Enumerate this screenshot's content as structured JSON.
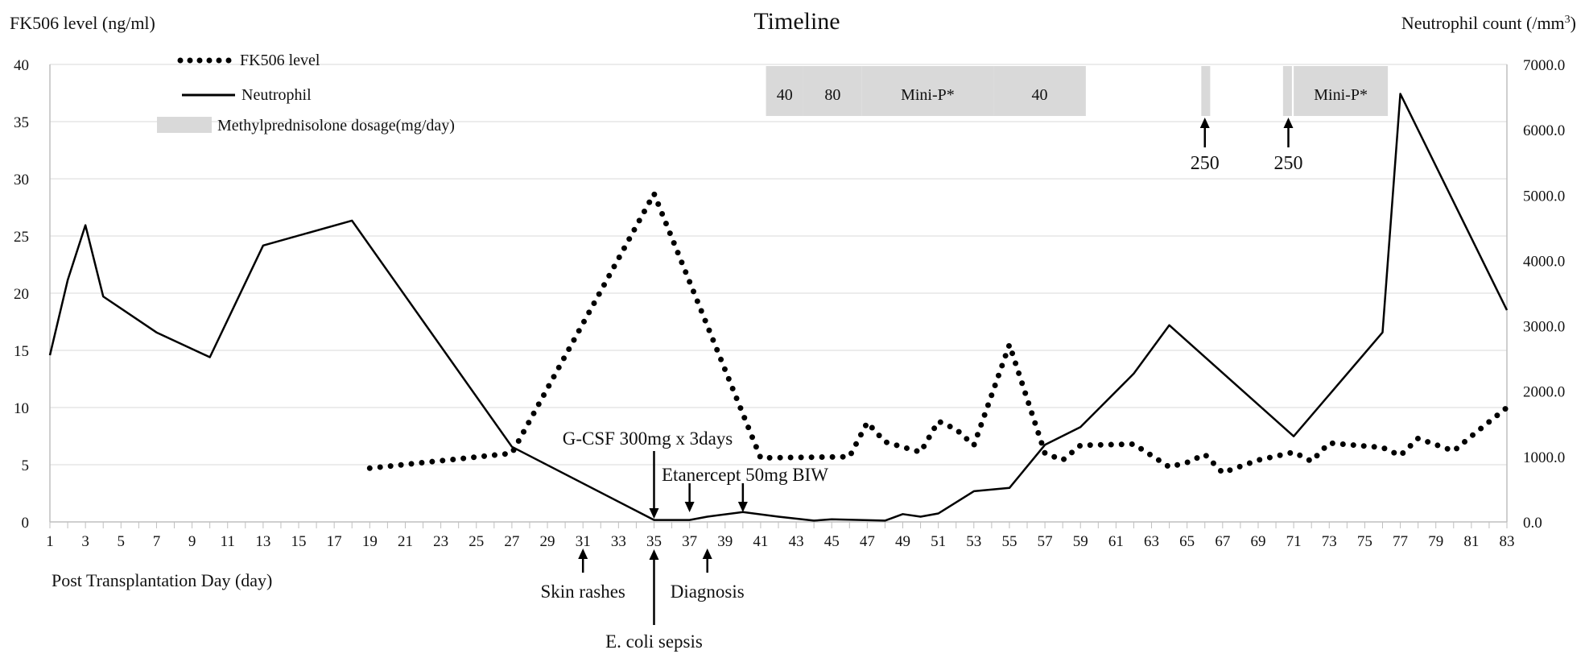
{
  "chart_data": {
    "type": "line",
    "title": "Timeline",
    "ylabel_left": "FK506 level (ng/ml)",
    "ylabel_right": "Neutrophil count (/mm3)",
    "ylabel_right_base": "Neutrophil count (/mm",
    "ylabel_right_sup": "3",
    "ylabel_right_end": ")",
    "xlabel": "Post Transplantation Day (day)",
    "xlim": [
      1,
      83
    ],
    "ylim_left": [
      0,
      40
    ],
    "ylim_right": [
      0,
      7000
    ],
    "yticks_left": [
      "0",
      "5",
      "10",
      "15",
      "20",
      "25",
      "30",
      "35",
      "40"
    ],
    "yticks_right": [
      "0.0",
      "1000.0",
      "2000.0",
      "3000.0",
      "4000.0",
      "5000.0",
      "6000.0",
      "7000.0"
    ],
    "xticks": [
      "1",
      "3",
      "5",
      "7",
      "9",
      "11",
      "13",
      "15",
      "17",
      "19",
      "21",
      "23",
      "25",
      "27",
      "29",
      "31",
      "33",
      "35",
      "37",
      "39",
      "41",
      "43",
      "45",
      "47",
      "49",
      "51",
      "53",
      "55",
      "57",
      "59",
      "61",
      "63",
      "65",
      "67",
      "69",
      "71",
      "73",
      "75",
      "77",
      "79",
      "81",
      "83"
    ],
    "legend": {
      "placement": "top-left",
      "fk506": "FK506 level",
      "neutrophil": "Neutrophil",
      "methylpred": "Methylprednisolone dosage(mg/day)"
    },
    "series": [
      {
        "name": "FK506 level",
        "axis": "left",
        "style": "dotted",
        "x": [
          19,
          27,
          35,
          41,
          46,
          47,
          48,
          50,
          51,
          52,
          53,
          55,
          57,
          58,
          59,
          62,
          64,
          65,
          66,
          67,
          69,
          71,
          72,
          73,
          76,
          77,
          78,
          80,
          81,
          83
        ],
        "y": [
          4.7,
          6.0,
          28.7,
          5.6,
          5.7,
          8.7,
          7.0,
          6.1,
          8.8,
          8.1,
          6.7,
          15.5,
          6.0,
          5.4,
          6.7,
          6.8,
          4.8,
          5.2,
          5.9,
          4.3,
          5.4,
          6.1,
          5.3,
          6.9,
          6.5,
          5.8,
          7.3,
          6.2,
          7.5,
          10.0
        ]
      },
      {
        "name": "Neutrophil",
        "axis": "right",
        "style": "solid",
        "x": [
          1,
          2,
          3,
          4,
          7,
          10,
          13,
          18,
          27,
          35,
          36,
          37,
          38,
          40,
          42,
          44,
          45,
          48,
          49,
          50,
          51,
          53,
          55,
          57,
          59,
          62,
          64,
          71,
          76,
          77,
          83
        ],
        "y": [
          2550,
          3700,
          4540,
          3450,
          2900,
          2520,
          4230,
          4610,
          1150,
          30,
          30,
          30,
          80,
          150,
          80,
          20,
          40,
          20,
          120,
          80,
          130,
          470,
          520,
          1180,
          1450,
          2270,
          3010,
          1310,
          2900,
          6550,
          3240
        ]
      }
    ],
    "methylprednisolone_blocks": [
      {
        "x_start": 41.3,
        "x_end": 43.4,
        "label": "40"
      },
      {
        "x_start": 43.4,
        "x_end": 46.7,
        "label": "80"
      },
      {
        "x_start": 46.7,
        "x_end": 54.1,
        "label": "Mini-P*"
      },
      {
        "x_start": 54.1,
        "x_end": 59.3,
        "label": "40"
      },
      {
        "x_start": 65.8,
        "x_end": 66.3,
        "label": ""
      },
      {
        "x_start": 70.4,
        "x_end": 70.9,
        "label": ""
      },
      {
        "x_start": 71.0,
        "x_end": 76.3,
        "label": "Mini-P*"
      }
    ],
    "annotations": [
      {
        "text": "250",
        "x": 66.0,
        "kind": "pulse"
      },
      {
        "text": "250",
        "x": 70.7,
        "kind": "pulse"
      },
      {
        "text": "G-CSF 300mg x 3days",
        "x": 35.0,
        "kind": "above"
      },
      {
        "text": "Etanercept 50mg BIW",
        "x": 37.0,
        "kind": "above"
      },
      {
        "text": "",
        "x": 40.0,
        "kind": "above"
      },
      {
        "text": "Skin rashes",
        "x": 31.0,
        "kind": "below"
      },
      {
        "text": "Diagnosis",
        "x": 38.0,
        "kind": "below"
      },
      {
        "text": "E. coli sepsis",
        "x": 35.0,
        "kind": "below-long"
      }
    ]
  }
}
